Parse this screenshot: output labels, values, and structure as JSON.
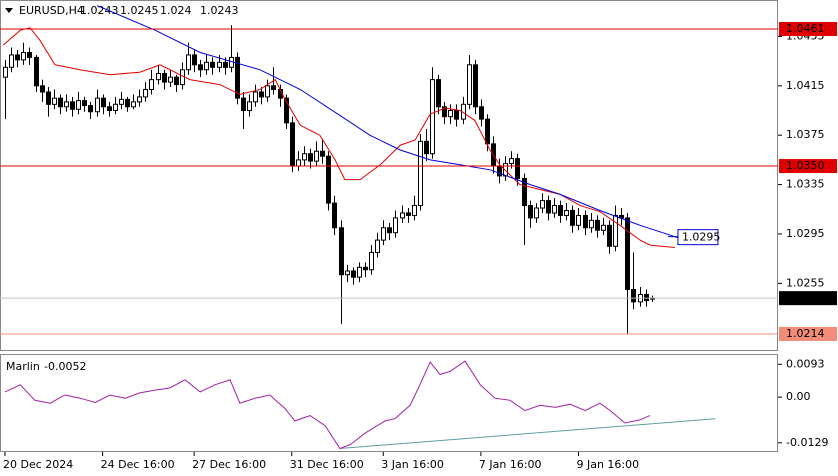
{
  "chart_data": [
    {
      "type": "candlestick",
      "title": "EURUSD,H4",
      "xlim": [
        -0.82,
        126.7
      ],
      "xticks": [
        {
          "value": 0,
          "label": "20 Dec 2024"
        },
        {
          "value": 16,
          "label": "24 Dec 16:00"
        },
        {
          "value": 31,
          "label": "27 Dec 16:00"
        },
        {
          "value": 47,
          "label": "31 Dec 16:00"
        },
        {
          "value": 62,
          "label": "3 Jan 16:00"
        },
        {
          "value": 78,
          "label": "7 Jan 16:00"
        },
        {
          "value": 94,
          "label": "9 Jan 16:00"
        }
      ],
      "ylim": [
        1.0201,
        1.04845
      ],
      "yticks": [
        1.0455,
        1.0415,
        1.0375,
        1.0335,
        1.0295,
        1.0255
      ],
      "up_color": "#ffffff",
      "down_color": "#000000",
      "ohlc": [
        [
          1.0422,
          1.0436,
          1.0388,
          1.043
        ],
        [
          1.043,
          1.0446,
          1.0426,
          1.044
        ],
        [
          1.044,
          1.0444,
          1.043,
          1.0436
        ],
        [
          1.0436,
          1.045,
          1.0432,
          1.0442
        ],
        [
          1.0442,
          1.0446,
          1.0432,
          1.0438
        ],
        [
          1.0438,
          1.044,
          1.041,
          1.0415
        ],
        [
          1.0415,
          1.042,
          1.0402,
          1.041
        ],
        [
          1.041,
          1.0414,
          1.039,
          1.04
        ],
        [
          1.04,
          1.0412,
          1.0396,
          1.0405
        ],
        [
          1.0405,
          1.0408,
          1.0392,
          1.0398
        ],
        [
          1.0398,
          1.0408,
          1.0394,
          1.0402
        ],
        [
          1.0402,
          1.0406,
          1.039,
          1.0396
        ],
        [
          1.0396,
          1.041,
          1.0392,
          1.0403
        ],
        [
          1.0403,
          1.0406,
          1.0394,
          1.0399
        ],
        [
          1.0399,
          1.0402,
          1.0388,
          1.0394
        ],
        [
          1.0394,
          1.0412,
          1.039,
          1.0405
        ],
        [
          1.0405,
          1.0408,
          1.0392,
          1.0398
        ],
        [
          1.0398,
          1.0402,
          1.039,
          1.0395
        ],
        [
          1.0395,
          1.0406,
          1.0392,
          1.04
        ],
        [
          1.04,
          1.041,
          1.0396,
          1.0404
        ],
        [
          1.0404,
          1.0406,
          1.0394,
          1.0398
        ],
        [
          1.0398,
          1.0408,
          1.0396,
          1.0402
        ],
        [
          1.0402,
          1.0412,
          1.0398,
          1.0406
        ],
        [
          1.0406,
          1.0418,
          1.0402,
          1.0412
        ],
        [
          1.0412,
          1.0428,
          1.0408,
          1.042
        ],
        [
          1.042,
          1.0432,
          1.0416,
          1.0425
        ],
        [
          1.0425,
          1.0428,
          1.0412,
          1.0418
        ],
        [
          1.0418,
          1.0428,
          1.0414,
          1.0422
        ],
        [
          1.0422,
          1.0424,
          1.041,
          1.0416
        ],
        [
          1.0416,
          1.0434,
          1.0412,
          1.0428
        ],
        [
          1.0428,
          1.045,
          1.0424,
          1.044
        ],
        [
          1.044,
          1.0444,
          1.0426,
          1.0432
        ],
        [
          1.0432,
          1.0436,
          1.0422,
          1.0428
        ],
        [
          1.0428,
          1.044,
          1.0424,
          1.0434
        ],
        [
          1.0434,
          1.0438,
          1.0424,
          1.043
        ],
        [
          1.043,
          1.044,
          1.0426,
          1.0434
        ],
        [
          1.0434,
          1.0438,
          1.0424,
          1.043
        ],
        [
          1.043,
          1.0464,
          1.0426,
          1.0438
        ],
        [
          1.0438,
          1.0442,
          1.04,
          1.0405
        ],
        [
          1.0405,
          1.041,
          1.038,
          1.0395
        ],
        [
          1.0395,
          1.0408,
          1.039,
          1.0402
        ],
        [
          1.0402,
          1.0416,
          1.0398,
          1.041
        ],
        [
          1.041,
          1.0414,
          1.04,
          1.0406
        ],
        [
          1.0406,
          1.042,
          1.0402,
          1.0415
        ],
        [
          1.0415,
          1.043,
          1.0408,
          1.0412
        ],
        [
          1.0412,
          1.0416,
          1.0398,
          1.0405
        ],
        [
          1.0405,
          1.0408,
          1.038,
          1.0385
        ],
        [
          1.0385,
          1.039,
          1.0345,
          1.035
        ],
        [
          1.035,
          1.0362,
          1.0346,
          1.0355
        ],
        [
          1.0355,
          1.0366,
          1.035,
          1.036
        ],
        [
          1.036,
          1.0364,
          1.0348,
          1.0354
        ],
        [
          1.0354,
          1.037,
          1.035,
          1.0362
        ],
        [
          1.0362,
          1.0372,
          1.0352,
          1.0358
        ],
        [
          1.0358,
          1.0362,
          1.0314,
          1.032
        ],
        [
          1.032,
          1.0326,
          1.0294,
          1.03
        ],
        [
          1.03,
          1.0306,
          1.0222,
          1.0262
        ],
        [
          1.0262,
          1.027,
          1.0256,
          1.0265
        ],
        [
          1.0265,
          1.0268,
          1.0254,
          1.026
        ],
        [
          1.026,
          1.0272,
          1.0256,
          1.0268
        ],
        [
          1.0268,
          1.0272,
          1.026,
          1.0266
        ],
        [
          1.0266,
          1.0286,
          1.0262,
          1.028
        ],
        [
          1.028,
          1.0296,
          1.0276,
          1.029
        ],
        [
          1.029,
          1.0306,
          1.0286,
          1.03
        ],
        [
          1.03,
          1.0304,
          1.029,
          1.0296
        ],
        [
          1.0296,
          1.0314,
          1.0292,
          1.0308
        ],
        [
          1.0308,
          1.0318,
          1.0304,
          1.0312
        ],
        [
          1.0312,
          1.0316,
          1.0304,
          1.031
        ],
        [
          1.031,
          1.0326,
          1.0306,
          1.0318
        ],
        [
          1.0318,
          1.0376,
          1.0314,
          1.037
        ],
        [
          1.037,
          1.038,
          1.0354,
          1.036
        ],
        [
          1.036,
          1.043,
          1.0356,
          1.042
        ],
        [
          1.042,
          1.0424,
          1.0392,
          1.0398
        ],
        [
          1.0398,
          1.0402,
          1.0384,
          1.039
        ],
        [
          1.039,
          1.04,
          1.0384,
          1.0395
        ],
        [
          1.0395,
          1.04,
          1.0382,
          1.0388
        ],
        [
          1.0388,
          1.0406,
          1.0384,
          1.04
        ],
        [
          1.04,
          1.044,
          1.0396,
          1.0432
        ],
        [
          1.0432,
          1.0436,
          1.0392,
          1.0398
        ],
        [
          1.0398,
          1.0404,
          1.0382,
          1.0388
        ],
        [
          1.0388,
          1.0392,
          1.0362,
          1.0368
        ],
        [
          1.0368,
          1.0374,
          1.0344,
          1.035
        ],
        [
          1.035,
          1.0356,
          1.0336,
          1.0342
        ],
        [
          1.0342,
          1.0358,
          1.0338,
          1.0352
        ],
        [
          1.0352,
          1.0362,
          1.0348,
          1.0356
        ],
        [
          1.0356,
          1.036,
          1.0334,
          1.034
        ],
        [
          1.034,
          1.0344,
          1.0286,
          1.0318
        ],
        [
          1.0318,
          1.0322,
          1.03,
          1.0308
        ],
        [
          1.0308,
          1.032,
          1.0304,
          1.0316
        ],
        [
          1.0316,
          1.0328,
          1.0312,
          1.0322
        ],
        [
          1.0322,
          1.0326,
          1.0306,
          1.0312
        ],
        [
          1.0312,
          1.0324,
          1.0308,
          1.0318
        ],
        [
          1.0318,
          1.0322,
          1.0304,
          1.031
        ],
        [
          1.031,
          1.032,
          1.0306,
          1.0314
        ],
        [
          1.0314,
          1.0318,
          1.0296,
          1.0302
        ],
        [
          1.0302,
          1.0316,
          1.0298,
          1.031
        ],
        [
          1.031,
          1.0314,
          1.0294,
          1.03
        ],
        [
          1.03,
          1.0312,
          1.0296,
          1.0306
        ],
        [
          1.0306,
          1.031,
          1.0292,
          1.0298
        ],
        [
          1.0298,
          1.0308,
          1.0294,
          1.0302
        ],
        [
          1.0302,
          1.0306,
          1.0279,
          1.0285
        ],
        [
          1.0285,
          1.0318,
          1.0281,
          1.031
        ],
        [
          1.031,
          1.0316,
          1.0302,
          1.0308
        ],
        [
          1.0308,
          1.0312,
          1.0214,
          1.025
        ],
        [
          1.025,
          1.028,
          1.0234,
          1.024
        ],
        [
          1.024,
          1.0252,
          1.0236,
          1.0246
        ],
        [
          1.0246,
          1.025,
          1.0236,
          1.0241
        ],
        [
          1.0243,
          1.0245,
          1.024,
          1.0243
        ]
      ],
      "series": [
        {
          "color": "#e00000",
          "x": [
            -0.3,
            2.5,
            4.1,
            5.7,
            8.2,
            12.3,
            17.2,
            22.1,
            25.4,
            30.3,
            35.2,
            38.5,
            41.8,
            44.3,
            45.9,
            48.4,
            51.6,
            54.1,
            55.7,
            58.2,
            61.5,
            64.8,
            67.2,
            69.7,
            72.1,
            74.6,
            77,
            79.5,
            81.1,
            84.4,
            87.7,
            91,
            94.3,
            97.5,
            100.8,
            104.1,
            105.7,
            109.8
          ],
          "values": [
            1.0448,
            1.046,
            1.0462,
            1.0452,
            1.0432,
            1.0428,
            1.0424,
            1.0426,
            1.0432,
            1.042,
            1.0416,
            1.0408,
            1.0412,
            1.042,
            1.0404,
            1.0383,
            1.0375,
            1.0355,
            1.0339,
            1.0339,
            1.0351,
            1.0367,
            1.0371,
            1.0392,
            1.0397,
            1.0395,
            1.0387,
            1.0363,
            1.0351,
            1.0335,
            1.0331,
            1.0327,
            1.0318,
            1.0313,
            1.0302,
            1.029,
            1.0286,
            1.0284
          ]
        },
        {
          "color": "#0000e0",
          "end_label": 1.0295,
          "x": [
            15.1,
            24.6,
            32,
            41.8,
            48.4,
            54.9,
            59.8,
            64.8,
            69.7,
            74.6,
            79.5,
            86.1,
            91,
            97.5,
            104.1,
            110.3
          ],
          "values": [
            1.048,
            1.046,
            1.0442,
            1.0428,
            1.0412,
            1.0391,
            1.0375,
            1.0363,
            1.0355,
            1.0351,
            1.0347,
            1.0335,
            1.0327,
            1.0314,
            1.0302,
            1.0292
          ]
        }
      ],
      "levels": [
        {
          "value": 1.0461,
          "color": "#e00000"
        },
        {
          "value": 1.035,
          "label": "1.0350",
          "color": "#e00000"
        },
        {
          "value": 1.0214,
          "color": "#f08c78"
        }
      ]
    },
    {
      "type": "line",
      "title": "Marlin",
      "xlim": [
        -0.82,
        126.7
      ],
      "ylim": [
        -0.0155,
        0.0122
      ],
      "yticks": [
        0.0093,
        {
          "value": 0,
          "label": "0.00"
        },
        -0.0129
      ],
      "series": [
        {
          "color": "#a020a0",
          "x": [
            0,
            2.5,
            4.9,
            7.4,
            9.8,
            12.3,
            14.8,
            17.2,
            19.7,
            22.1,
            24.6,
            27,
            29.5,
            32,
            34.4,
            36.9,
            38.5,
            41,
            43.4,
            45.9,
            47.5,
            50,
            52.5,
            54.9,
            56.6,
            59,
            62.3,
            63.9,
            66.4,
            68,
            69.7,
            71.3,
            73,
            75.4,
            77.9,
            80.3,
            82.8,
            85.2,
            87.7,
            90.2,
            92.6,
            95.1,
            97.5,
            99.2,
            101.6,
            104.1,
            105.7
          ],
          "values": [
            0.0015,
            0.0035,
            -0.0009,
            -0.0017,
            0.0006,
            -0.0003,
            -0.0015,
            0.0006,
            -0.0003,
            0.0012,
            0.002,
            0.0026,
            0.0049,
            0.0015,
            0.0035,
            0.0049,
            -0.0017,
            -0.0003,
            0.0006,
            -0.0032,
            -0.0067,
            -0.0052,
            -0.0081,
            -0.0145,
            -0.0134,
            -0.0102,
            -0.0067,
            -0.0061,
            -0.0023,
            0.0035,
            0.0099,
            0.0064,
            0.0073,
            0.0102,
            0.0035,
            -0.0003,
            -0.0009,
            -0.0038,
            -0.0023,
            -0.0029,
            -0.002,
            -0.0038,
            -0.0017,
            -0.0038,
            -0.0073,
            -0.0064,
            -0.0052
          ]
        }
      ],
      "trendline": {
        "color": "#5f9ea0",
        "x": [
          54.9,
          116.4
        ],
        "values": [
          -0.0145,
          -0.0061
        ]
      }
    }
  ]
}
